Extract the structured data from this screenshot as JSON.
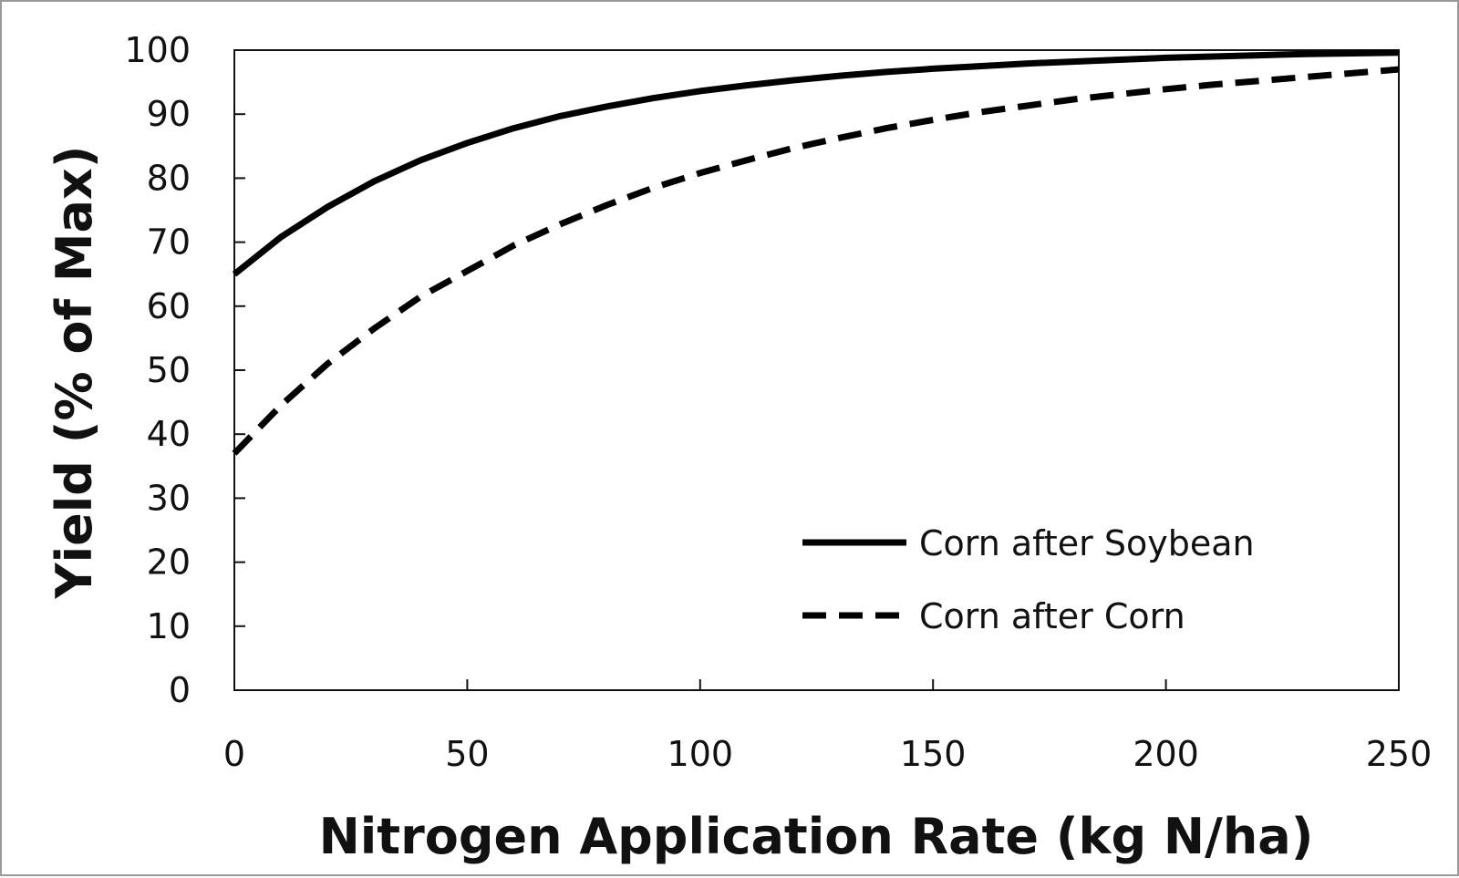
{
  "chart_data": {
    "type": "line",
    "title": "",
    "xlabel": "Nitrogen Application Rate (kg N/ha)",
    "ylabel": "Yield (% of Max)",
    "xlim": [
      0,
      250
    ],
    "ylim": [
      0,
      100
    ],
    "xticks": [
      0,
      50,
      100,
      150,
      200,
      250
    ],
    "yticks": [
      0,
      10,
      20,
      30,
      40,
      50,
      60,
      70,
      80,
      90,
      100
    ],
    "grid": false,
    "legend_position": "bottom-right",
    "x": [
      0,
      10,
      20,
      30,
      40,
      50,
      60,
      70,
      80,
      90,
      100,
      110,
      120,
      130,
      140,
      150,
      160,
      170,
      180,
      190,
      200,
      210,
      220,
      230,
      240,
      250
    ],
    "series": [
      {
        "name": "Corn after Soybean",
        "style": "solid",
        "color": "#000000",
        "values": [
          65,
          70.8,
          75.5,
          79.5,
          82.8,
          85.5,
          87.8,
          89.7,
          91.2,
          92.5,
          93.6,
          94.5,
          95.3,
          96.0,
          96.6,
          97.1,
          97.5,
          97.9,
          98.2,
          98.5,
          98.8,
          99.0,
          99.2,
          99.4,
          99.5,
          99.6
        ]
      },
      {
        "name": "Corn after Corn",
        "style": "dashed",
        "color": "#000000",
        "values": [
          37,
          44.5,
          51,
          56.5,
          61.5,
          65.5,
          69.5,
          72.8,
          75.8,
          78.5,
          80.8,
          82.8,
          84.7,
          86.3,
          87.8,
          89.1,
          90.3,
          91.3,
          92.3,
          93.1,
          93.9,
          94.6,
          95.2,
          95.8,
          96.4,
          97.0
        ]
      }
    ]
  }
}
